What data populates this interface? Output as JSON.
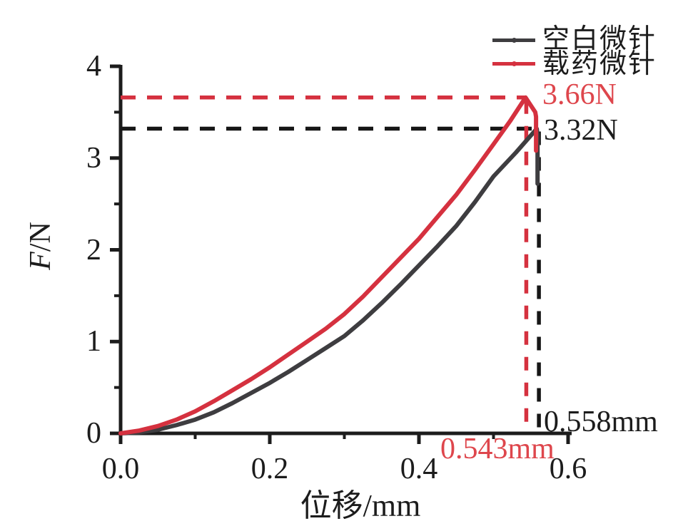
{
  "chart_data": {
    "type": "line",
    "title": "",
    "xlabel": "位移/mm",
    "ylabel": "F/N",
    "ylabel_parts": [
      "F",
      "/N"
    ],
    "xlim": [
      0,
      0.62
    ],
    "ylim": [
      0,
      4
    ],
    "x_tick_labels": [
      "0.0",
      "0.2",
      "0.4",
      "0.6"
    ],
    "x_major_ticks": [
      0,
      0.2,
      0.4,
      0.6
    ],
    "x_minor_ticks": [
      0.1,
      0.3,
      0.5
    ],
    "y_tick_labels": [
      "0",
      "1",
      "2",
      "3",
      "4"
    ],
    "y_major_ticks": [
      0,
      1,
      2,
      3,
      4
    ],
    "y_minor_ticks": [
      0.5,
      1.5,
      2.5,
      3.5
    ],
    "grid": false,
    "legend_position": "top-right",
    "series": [
      {
        "name": "空白微针",
        "color": "#3e3d40",
        "dash_color": "#161616",
        "peak": [
          0.558,
          3.32
        ],
        "peak_force_label": "3.32N",
        "peak_disp_label": "0.558mm",
        "points": [
          [
            0,
            0
          ],
          [
            0.025,
            0.01
          ],
          [
            0.05,
            0.04
          ],
          [
            0.075,
            0.09
          ],
          [
            0.1,
            0.15
          ],
          [
            0.125,
            0.23
          ],
          [
            0.15,
            0.33
          ],
          [
            0.175,
            0.44
          ],
          [
            0.2,
            0.55
          ],
          [
            0.225,
            0.67
          ],
          [
            0.25,
            0.8
          ],
          [
            0.275,
            0.93
          ],
          [
            0.3,
            1.06
          ],
          [
            0.325,
            1.23
          ],
          [
            0.35,
            1.42
          ],
          [
            0.375,
            1.62
          ],
          [
            0.4,
            1.83
          ],
          [
            0.425,
            2.04
          ],
          [
            0.45,
            2.26
          ],
          [
            0.475,
            2.52
          ],
          [
            0.5,
            2.8
          ],
          [
            0.53,
            3.06
          ],
          [
            0.558,
            3.32
          ],
          [
            0.559,
            3.25
          ],
          [
            0.559,
            2.72
          ]
        ]
      },
      {
        "name": "载药微针",
        "color": "#d5313f",
        "dash_color": "#d5313f",
        "peak": [
          0.543,
          3.66
        ],
        "peak_force_label": "3.66N",
        "peak_disp_label": "0.543mm",
        "points": [
          [
            0,
            0
          ],
          [
            0.025,
            0.03
          ],
          [
            0.05,
            0.08
          ],
          [
            0.075,
            0.15
          ],
          [
            0.1,
            0.24
          ],
          [
            0.125,
            0.35
          ],
          [
            0.15,
            0.47
          ],
          [
            0.175,
            0.59
          ],
          [
            0.2,
            0.72
          ],
          [
            0.225,
            0.86
          ],
          [
            0.25,
            1.0
          ],
          [
            0.275,
            1.14
          ],
          [
            0.3,
            1.3
          ],
          [
            0.325,
            1.49
          ],
          [
            0.35,
            1.7
          ],
          [
            0.375,
            1.91
          ],
          [
            0.4,
            2.12
          ],
          [
            0.425,
            2.36
          ],
          [
            0.45,
            2.6
          ],
          [
            0.475,
            2.87
          ],
          [
            0.5,
            3.15
          ],
          [
            0.522,
            3.4
          ],
          [
            0.543,
            3.66
          ],
          [
            0.556,
            3.5
          ],
          [
            0.557,
            3.45
          ],
          [
            0.557,
            3.08
          ]
        ]
      }
    ]
  },
  "legend": {
    "items": [
      {
        "label": "空白微针",
        "color": "#3e3d40"
      },
      {
        "label": "载药微针",
        "color": "#d5313f"
      }
    ]
  },
  "annotations": {
    "loaded_peak_force": "3.66N",
    "blank_peak_force": "3.32N",
    "blank_peak_displacement": "0.558mm",
    "loaded_peak_displacement": "0.543mm"
  },
  "colors": {
    "red": "#d5313f",
    "red_text": "#de464c",
    "black_curve": "#3e3d40",
    "axis": "#1c1c1c",
    "background": "#ffffff"
  }
}
